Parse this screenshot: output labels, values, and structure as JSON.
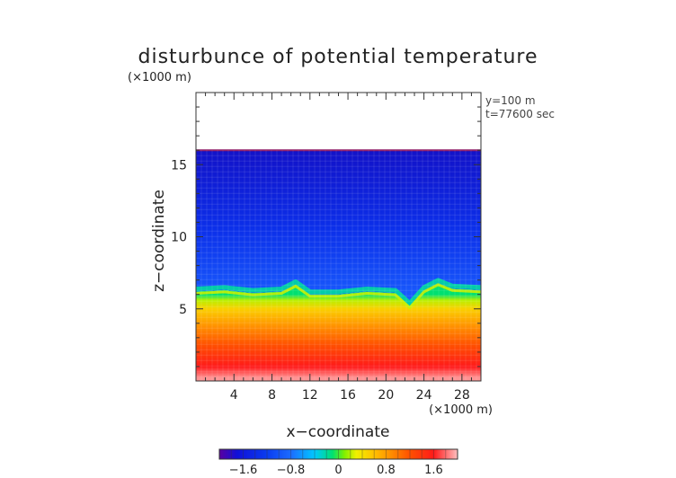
{
  "chart_data": {
    "type": "heatmap",
    "title": "disturbunce of potential temperature",
    "xlabel": "x−coordinate",
    "ylabel": "z−coordinate",
    "x_unit": "(×1000 m)",
    "y_unit": "(×1000 m)",
    "xlim": [
      0,
      30
    ],
    "ylim": [
      0,
      20
    ],
    "xticks": [
      4,
      8,
      12,
      16,
      20,
      24,
      28
    ],
    "yticks": [
      5,
      10,
      15
    ],
    "annotations": [
      "y=100 m",
      "t=77600 sec"
    ],
    "colorbar": {
      "range": [
        -2.0,
        2.0
      ],
      "ticks": [
        -1.6,
        -0.8,
        0,
        0.8,
        1.6
      ],
      "tick_labels": [
        "−1.6",
        "−0.8",
        "0",
        "0.8",
        "1.6"
      ]
    },
    "field_top_z": 16.0,
    "field_columns_x": [
      0,
      3,
      6,
      9,
      10.5,
      12,
      15,
      18,
      21,
      22.5,
      24,
      25.5,
      27,
      30
    ],
    "boundary_z": [
      6.2,
      6.3,
      6.1,
      6.2,
      6.7,
      6.0,
      6.0,
      6.2,
      6.1,
      5.2,
      6.3,
      6.8,
      6.4,
      6.3
    ],
    "lower_layer": [
      {
        "z": 0.2,
        "value": 1.9
      },
      {
        "z": 1.0,
        "value": 1.6
      },
      {
        "z": 2.5,
        "value": 1.2
      },
      {
        "z": 4.0,
        "value": 0.8
      },
      {
        "z": 5.0,
        "value": 0.5
      },
      {
        "z": 5.6,
        "value": 0.2
      },
      {
        "z": 6.0,
        "value": -0.1
      }
    ],
    "upper_layer_value": -1.35
  }
}
